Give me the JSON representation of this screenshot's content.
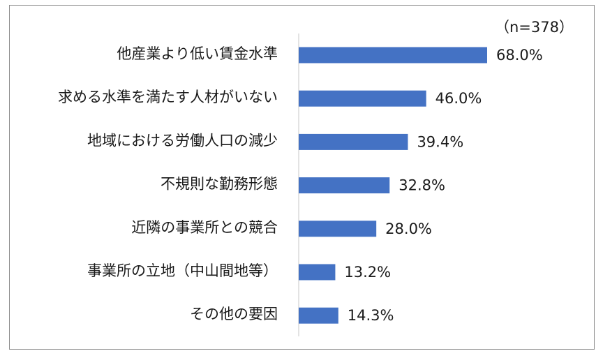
{
  "chart_data": {
    "type": "bar",
    "orientation": "horizontal",
    "categories": [
      "他産業より低い賃金水準",
      "求める水準を満たす人材がいない",
      "地域における労働人口の減少",
      "不規則な勤務形態",
      "近隣の事業所との競合",
      "事業所の立地（中山間地等）",
      "その他の要因"
    ],
    "values": [
      68.0,
      46.0,
      39.4,
      32.8,
      28.0,
      13.2,
      14.3
    ],
    "value_labels": [
      "68.0%",
      "46.0%",
      "39.4%",
      "32.8%",
      "28.0%",
      "13.2%",
      "14.3%"
    ],
    "annotation": "（n=378）",
    "bar_color": "#4472c4",
    "xlim": [
      0,
      100
    ],
    "grid": false
  }
}
